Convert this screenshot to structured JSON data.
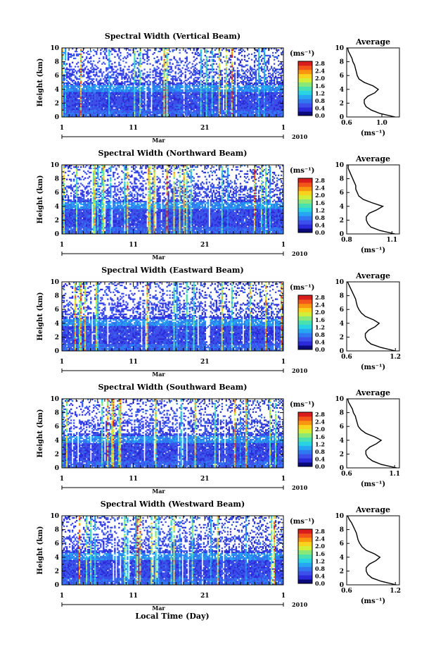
{
  "colors": {
    "scale": [
      "#0a0a7a",
      "#2a2ad8",
      "#3c4fe8",
      "#2f78f0",
      "#27a6f2",
      "#2ad2e2",
      "#4be0b0",
      "#8ae879",
      "#d2ee3a",
      "#f8d21e",
      "#f89612",
      "#f1561a",
      "#d81d1d"
    ],
    "line": "#000000"
  },
  "chart_data": [
    {
      "type": "heatmap",
      "title": "Spectral Width (Vertical Beam)",
      "ylabel": "Height (km)",
      "ylim": [
        0,
        10
      ],
      "yticks": [
        "0",
        "2",
        "4",
        "6",
        "8",
        "10"
      ],
      "xlim": [
        1,
        32
      ],
      "xticks": [
        "1",
        "11",
        "21",
        "1"
      ],
      "month_label": "Mar",
      "year_label": "2010",
      "colorbar": {
        "unit": "(ms⁻¹)",
        "ticks": [
          "0.0",
          "0.4",
          "0.8",
          "1.2",
          "1.6",
          "2.0",
          "2.4",
          "2.8"
        ],
        "range": [
          0.0,
          2.8
        ]
      },
      "average": {
        "title": "Average",
        "xlabel": "(ms⁻¹)",
        "xticks": [
          "0.6",
          "1.0"
        ],
        "xlim": [
          0.6,
          1.2
        ],
        "height": [
          0,
          0.5,
          1,
          1.5,
          2,
          2.5,
          3,
          3.5,
          4,
          4.5,
          5,
          5.5,
          6,
          6.5,
          7,
          7.5,
          8,
          8.5,
          9,
          9.5,
          10
        ],
        "values": [
          1.15,
          0.98,
          0.88,
          0.82,
          0.8,
          0.8,
          0.84,
          0.92,
          0.96,
          0.9,
          0.8,
          0.74,
          0.72,
          0.71,
          0.7,
          0.69,
          0.67,
          0.66,
          0.64,
          0.62,
          0.61
        ]
      }
    },
    {
      "type": "heatmap",
      "title": "Spectral Width (Northward Beam)",
      "ylabel": "Height (km)",
      "ylim": [
        0,
        10
      ],
      "yticks": [
        "0",
        "2",
        "4",
        "6",
        "8",
        "10"
      ],
      "xlim": [
        1,
        32
      ],
      "xticks": [
        "1",
        "11",
        "21",
        "1"
      ],
      "month_label": "Mar",
      "year_label": "2010",
      "colorbar": {
        "unit": "(ms⁻¹)",
        "ticks": [
          "0.0",
          "0.4",
          "0.8",
          "1.2",
          "1.6",
          "2.0",
          "2.4",
          "2.8"
        ],
        "range": [
          0.0,
          2.8
        ]
      },
      "average": {
        "title": "Average",
        "xlabel": "(ms⁻¹)",
        "xticks": [
          "0.8",
          "1.1"
        ],
        "xlim": [
          0.8,
          1.15
        ],
        "height": [
          0,
          0.5,
          1,
          1.5,
          2,
          2.5,
          3,
          3.5,
          4,
          4.5,
          5,
          5.5,
          6,
          6.5,
          7,
          7.5,
          8,
          8.5,
          9,
          9.5,
          10
        ],
        "values": [
          1.12,
          1.02,
          0.96,
          0.94,
          0.93,
          0.93,
          0.95,
          1.0,
          1.04,
          0.97,
          0.91,
          0.88,
          0.87,
          0.86,
          0.86,
          0.85,
          0.84,
          0.83,
          0.82,
          0.81,
          0.81
        ]
      }
    },
    {
      "type": "heatmap",
      "title": "Spectral Width (Eastward Beam)",
      "ylabel": "Height (km)",
      "ylim": [
        0,
        10
      ],
      "yticks": [
        "0",
        "2",
        "4",
        "6",
        "8",
        "10"
      ],
      "xlim": [
        1,
        32
      ],
      "xticks": [
        "1",
        "11",
        "21",
        "1"
      ],
      "month_label": "Mar",
      "year_label": "2010",
      "colorbar": {
        "unit": "(ms⁻¹)",
        "ticks": [
          "0.0",
          "0.4",
          "0.8",
          "1.2",
          "1.6",
          "2.0",
          "2.4",
          "2.8"
        ],
        "range": [
          0.0,
          2.8
        ]
      },
      "average": {
        "title": "Average",
        "xlabel": "(ms⁻¹)",
        "xticks": [
          "0.6",
          "1.2"
        ],
        "xlim": [
          0.6,
          1.25
        ],
        "height": [
          0,
          0.5,
          1,
          1.5,
          2,
          2.5,
          3,
          3.5,
          4,
          4.5,
          5,
          5.5,
          6,
          6.5,
          7,
          7.5,
          8,
          8.5,
          9,
          9.5,
          10
        ],
        "values": [
          1.2,
          1.02,
          0.9,
          0.85,
          0.83,
          0.83,
          0.87,
          0.95,
          1.0,
          0.93,
          0.83,
          0.78,
          0.75,
          0.73,
          0.72,
          0.71,
          0.69,
          0.67,
          0.65,
          0.63,
          0.61
        ]
      }
    },
    {
      "type": "heatmap",
      "title": "Spectral Width (Southward Beam)",
      "ylabel": "Height (km)",
      "ylim": [
        0,
        10
      ],
      "yticks": [
        "0",
        "2",
        "4",
        "6",
        "8",
        "10"
      ],
      "xlim": [
        1,
        32
      ],
      "xticks": [
        "1",
        "11",
        "21",
        "1"
      ],
      "month_label": "Mar",
      "year_label": "2010",
      "colorbar": {
        "unit": "(ms⁻¹)",
        "ticks": [
          "0.0",
          "0.4",
          "0.8",
          "1.2",
          "1.6",
          "2.0",
          "2.4",
          "2.8"
        ],
        "range": [
          0.0,
          2.8
        ]
      },
      "average": {
        "title": "Average",
        "xlabel": "(ms⁻¹)",
        "xticks": [
          "0.6",
          "1.1"
        ],
        "xlim": [
          0.6,
          1.15
        ],
        "height": [
          0,
          0.5,
          1,
          1.5,
          2,
          2.5,
          3,
          3.5,
          4,
          4.5,
          5,
          5.5,
          6,
          6.5,
          7,
          7.5,
          8,
          8.5,
          9,
          9.5,
          10
        ],
        "values": [
          1.12,
          0.96,
          0.87,
          0.82,
          0.8,
          0.8,
          0.84,
          0.91,
          0.96,
          0.89,
          0.8,
          0.75,
          0.72,
          0.71,
          0.7,
          0.69,
          0.67,
          0.66,
          0.64,
          0.62,
          0.61
        ]
      }
    },
    {
      "type": "heatmap",
      "title": "Spectral Width (Westward Beam)",
      "ylabel": "Height (km)",
      "ylim": [
        0,
        10
      ],
      "yticks": [
        "0",
        "2",
        "4",
        "6",
        "8",
        "10"
      ],
      "xlim": [
        1,
        32
      ],
      "xticks": [
        "1",
        "11",
        "21",
        "1"
      ],
      "month_label": "Mar",
      "year_label": "2010",
      "colorbar": {
        "unit": "(ms⁻¹)",
        "ticks": [
          "0.0",
          "0.4",
          "0.8",
          "1.2",
          "1.6",
          "2.0",
          "2.4",
          "2.8"
        ],
        "range": [
          0.0,
          2.8
        ]
      },
      "average": {
        "title": "Average",
        "xlabel": "(ms⁻¹)",
        "xticks": [
          "0.6",
          "1.2"
        ],
        "xlim": [
          0.6,
          1.25
        ],
        "height": [
          0,
          0.5,
          1,
          1.5,
          2,
          2.5,
          3,
          3.5,
          4,
          4.5,
          5,
          5.5,
          6,
          6.5,
          7,
          7.5,
          8,
          8.5,
          9,
          9.5,
          10
        ],
        "values": [
          1.21,
          1.03,
          0.91,
          0.86,
          0.84,
          0.84,
          0.88,
          0.96,
          1.01,
          0.94,
          0.84,
          0.79,
          0.76,
          0.74,
          0.73,
          0.72,
          0.7,
          0.68,
          0.66,
          0.63,
          0.61
        ]
      }
    }
  ],
  "x_axis_title": "Local Time (Day)"
}
